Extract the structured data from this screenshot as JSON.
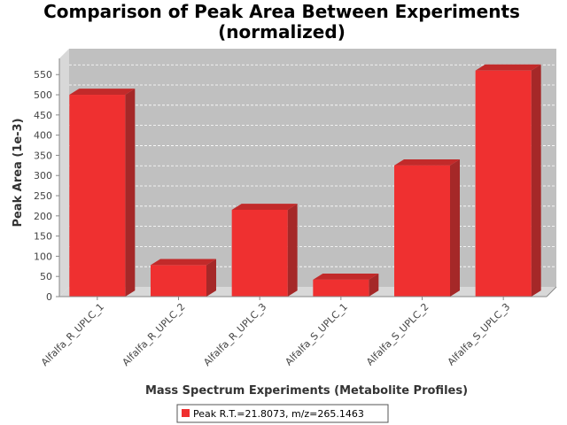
{
  "chart_data": {
    "type": "bar",
    "title_line1": "Comparison of Peak Area Between Experiments",
    "title_line2": "(normalized)",
    "xlabel": "Mass Spectrum Experiments (Metabolite Profiles)",
    "ylabel": "Peak Area (1e-3)",
    "categories": [
      "Alfalfa_R_UPLC_1",
      "Alfalfa_R_UPLC_2",
      "Alfalfa_R_UPLC_3",
      "Alfalfa_S_UPLC_1",
      "Alfalfa_S_UPLC_2",
      "Alfalfa_S_UPLC_3"
    ],
    "series": [
      {
        "name": "Peak R.T.=21.8073, m/z=265.1463",
        "values": [
          500,
          78,
          215,
          42,
          325,
          560
        ]
      }
    ],
    "ylim": [
      0,
      590
    ],
    "yticks": [
      "0",
      "50",
      "100",
      "150",
      "200",
      "250",
      "300",
      "350",
      "400",
      "450",
      "500",
      "550"
    ],
    "grid": true,
    "legend_position": "bottom",
    "colors": {
      "bar": "#ef3030",
      "bar_side": "#a52828",
      "bar_top": "#c22a2a",
      "plot_bg": "#c0c0c0",
      "plot_side": "#d8d8d8"
    }
  }
}
